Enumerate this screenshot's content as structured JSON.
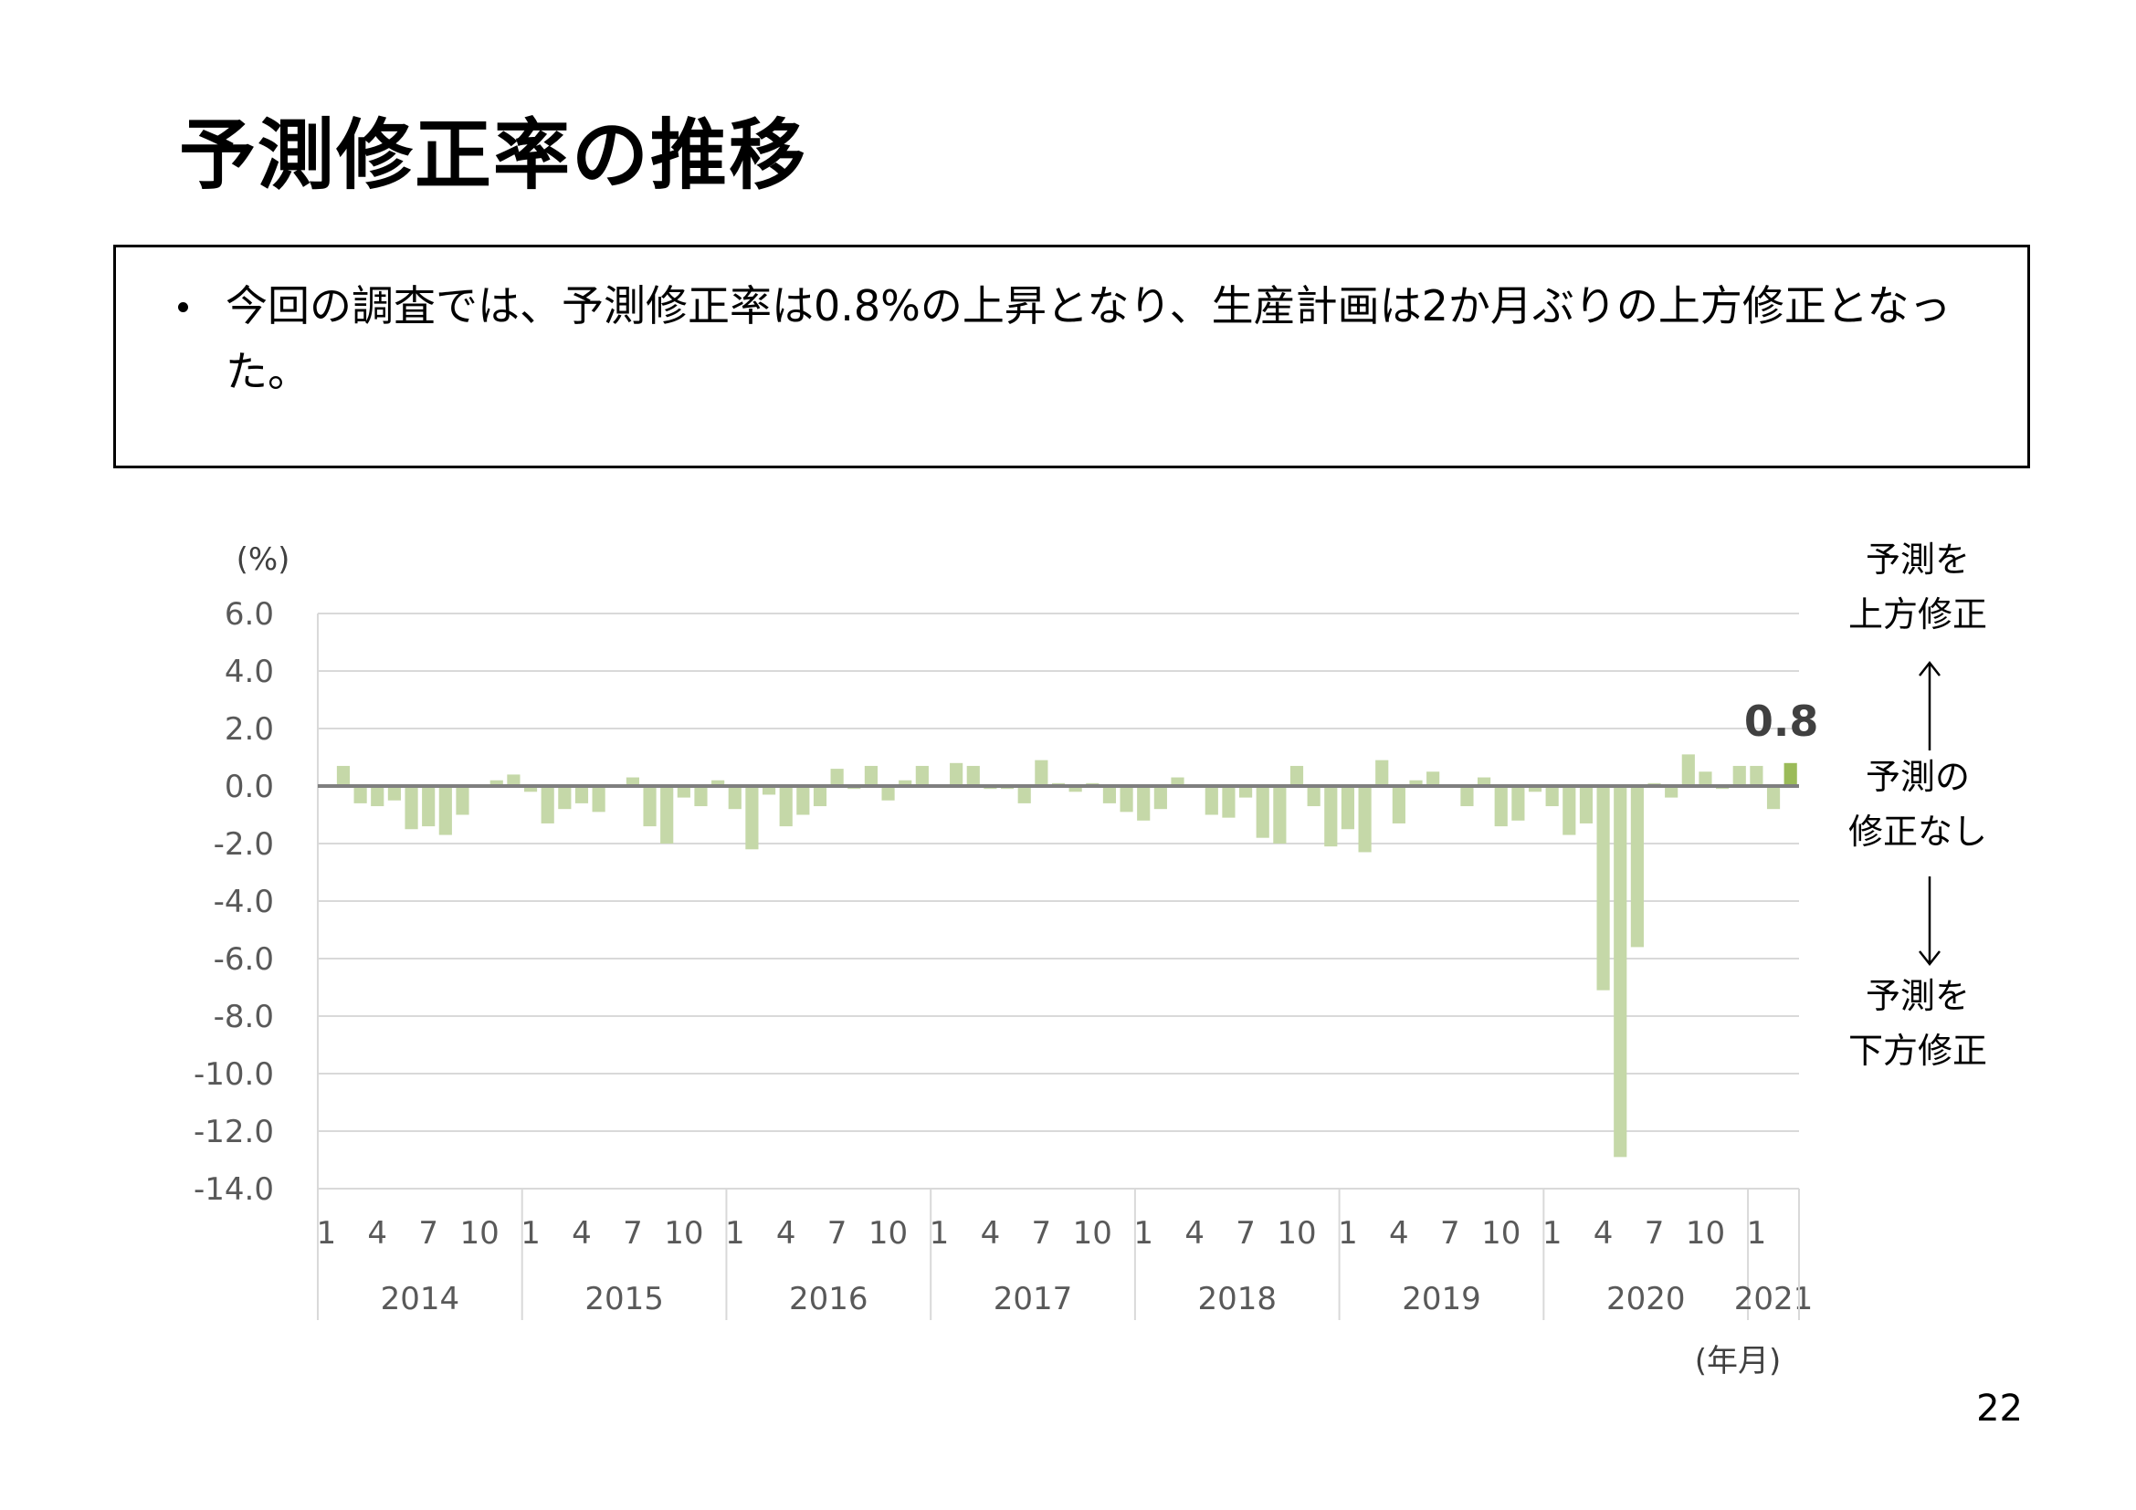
{
  "title": "予測修正率の推移",
  "summary": "今回の調査では、予測修正率は0.8%の上昇となり、生産計画は2か月ぶりの上方修正となった。",
  "page_number": "22",
  "side_labels": {
    "upward_line1": "予測を",
    "upward_line2": "上方修正",
    "none_line1": "予測の",
    "none_line2": "修正なし",
    "downward_line1": "予測を",
    "downward_line2": "下方修正"
  },
  "colors": {
    "bar": "#c5d8a8",
    "latest_bar": "#9bbb59",
    "zero_line": "#7f7f7f",
    "grid": "#d9d9d9"
  },
  "chart_data": {
    "type": "bar",
    "ylabel": "(%)",
    "xlabel": "(年月)",
    "ylim": [
      -14,
      6
    ],
    "yticks": [
      "6.0",
      "4.0",
      "2.0",
      "0.0",
      "-2.0",
      "-4.0",
      "-6.0",
      "-8.0",
      "-10.0",
      "-12.0",
      "-14.0"
    ],
    "grid": true,
    "month_ticks": [
      "1",
      "4",
      "7",
      "10"
    ],
    "years": [
      "2014",
      "2015",
      "2016",
      "2017",
      "2018",
      "2019",
      "2020",
      "2021"
    ],
    "latest_label": "0.8",
    "series": [
      {
        "values": [
          0.0,
          0.7,
          -0.6,
          -0.7,
          -0.5,
          -1.5,
          -1.4,
          -1.7,
          -1.0,
          0.0,
          0.2,
          0.4,
          -0.2,
          -1.3,
          -0.8,
          -0.6,
          -0.9,
          0.0,
          0.3,
          -1.4,
          -2.0,
          -0.4,
          -0.7,
          0.2,
          -0.8,
          -2.2,
          -0.3,
          -1.4,
          -1.0,
          -0.7,
          0.6,
          -0.1,
          0.7,
          -0.5,
          0.2,
          0.7,
          0.0,
          0.8,
          0.7,
          -0.1,
          -0.1,
          -0.6,
          0.9,
          0.1,
          -0.2,
          0.1,
          -0.6,
          -0.9,
          -1.2,
          -0.8,
          0.3,
          0.0,
          -1.0,
          -1.1,
          -0.4,
          -1.8,
          -2.0,
          0.7,
          -0.7,
          -2.1,
          -1.5,
          -2.3,
          0.9,
          -1.3,
          0.2,
          0.5,
          0.0,
          -0.7,
          0.3,
          -1.4,
          -1.2,
          -0.2,
          -0.7,
          -1.7,
          -1.3,
          -7.1,
          -12.9,
          -5.6,
          0.1,
          -0.4,
          1.1,
          0.5,
          -0.1,
          0.7,
          0.7,
          -0.8,
          0.8
        ]
      }
    ]
  }
}
